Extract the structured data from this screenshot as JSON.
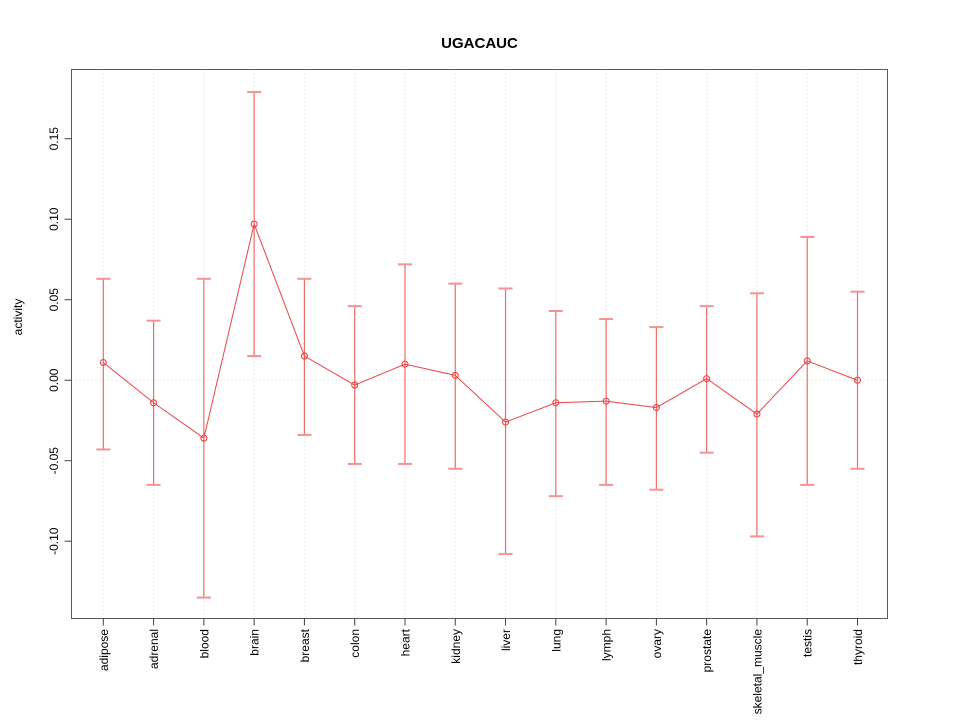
{
  "chart_data": {
    "type": "line",
    "subtype": "points-with-error-bars",
    "title": "UGACAUC",
    "xlabel": "",
    "ylabel": "activity",
    "categories": [
      "adipose",
      "adrenal",
      "blood",
      "brain",
      "breast",
      "colon",
      "heart",
      "kidney",
      "liver",
      "lung",
      "lymph",
      "ovary",
      "prostate",
      "skeletal_muscle",
      "testis",
      "thyroid"
    ],
    "series": [
      {
        "name": "activity",
        "values": [
          0.011,
          -0.014,
          -0.036,
          0.097,
          0.015,
          -0.003,
          0.01,
          0.003,
          -0.026,
          -0.014,
          -0.013,
          -0.017,
          0.001,
          -0.021,
          0.012,
          0.0
        ],
        "lower": [
          -0.043,
          -0.065,
          -0.135,
          0.015,
          -0.034,
          -0.052,
          -0.052,
          -0.055,
          -0.108,
          -0.072,
          -0.065,
          -0.068,
          -0.045,
          -0.097,
          -0.065,
          -0.055
        ],
        "upper": [
          0.063,
          0.037,
          0.063,
          0.179,
          0.063,
          0.046,
          0.072,
          0.06,
          0.057,
          0.043,
          0.038,
          0.033,
          0.046,
          0.054,
          0.089,
          0.055
        ]
      }
    ],
    "yticks": [
      "-0.10",
      "-0.05",
      "0.00",
      "0.05",
      "0.10",
      "0.15"
    ],
    "ytick_values": [
      -0.1,
      -0.05,
      0.0,
      0.05,
      0.1,
      0.15
    ],
    "ylim": [
      -0.148,
      0.193
    ],
    "grid": {
      "vertical_per_category": true,
      "zero_line": true,
      "style": "dotted"
    },
    "legend": null,
    "marker": "open-circle"
  },
  "colors": {
    "series_line": "#ee4343",
    "marker_stroke": "#ee4343",
    "errorbar_stem": "#f26a6a",
    "errorbar_cap": "#f79292",
    "grid": "#d9d9d9",
    "axis_box": "#595959",
    "tick": "#404040",
    "text": "#000000",
    "background": "#ffffff"
  }
}
